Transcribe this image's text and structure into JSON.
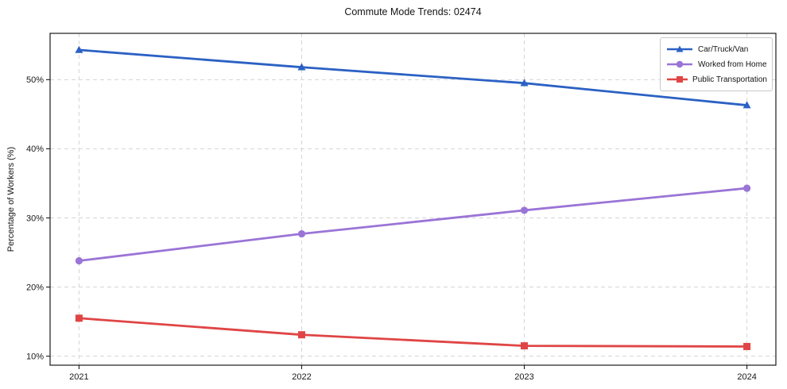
{
  "chart_data": {
    "type": "line",
    "title": "Commute Mode Trends: 02474",
    "xlabel": "",
    "ylabel": "Percentage of Workers (%)",
    "x": [
      2021,
      2022,
      2023,
      2024
    ],
    "x_tick_labels": [
      "2021",
      "2022",
      "2023",
      "2024"
    ],
    "y_ticks": [
      10,
      20,
      30,
      40,
      50
    ],
    "y_tick_labels": [
      "10%",
      "20%",
      "30%",
      "40%",
      "50%"
    ],
    "xlim": [
      2020.87,
      2024.13
    ],
    "ylim": [
      8.7,
      56.7
    ],
    "grid": true,
    "grid_style": "dashed",
    "legend_position": "upper right",
    "series": [
      {
        "name": "Car/Truck/Van",
        "color": "#2b61c4",
        "marker": "triangle",
        "values": [
          54.3,
          51.8,
          49.5,
          46.3
        ]
      },
      {
        "name": "Worked from Home",
        "color": "#9a74d6",
        "marker": "circle",
        "values": [
          23.8,
          27.7,
          31.1,
          34.3
        ]
      },
      {
        "name": "Public Transportation",
        "color": "#e04545",
        "marker": "square",
        "values": [
          15.5,
          13.1,
          11.5,
          11.4
        ]
      }
    ],
    "colors": {
      "background": "#ffffff",
      "grid": "#d4d4d4",
      "spine": "#1a1a1a",
      "text": "#141414"
    }
  }
}
